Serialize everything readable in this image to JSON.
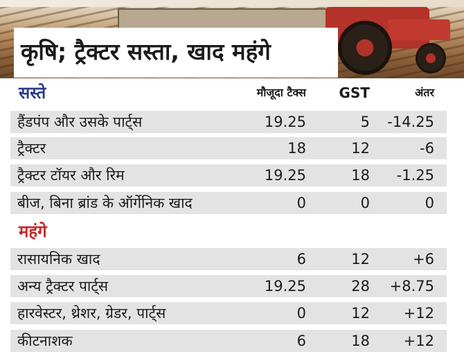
{
  "title": "कृषि; ट्रैक्टर सस्ता, खाद महंगे",
  "columns": {
    "old_tax": "मौजूदा टैक्स",
    "gst": "GST",
    "diff": "अंतर"
  },
  "sections": {
    "cheaper": {
      "label": "सस्ते",
      "color": "#2a3a8c",
      "rows": [
        {
          "item": "हैंडपंप और उसके पार्ट्स",
          "old_tax": "19.25",
          "gst": "5",
          "diff": "-14.25"
        },
        {
          "item": "ट्रैक्टर",
          "old_tax": "18",
          "gst": "12",
          "diff": "-6"
        },
        {
          "item": "ट्रैक्टर टॉयर और रिम",
          "old_tax": "19.25",
          "gst": "18",
          "diff": "-1.25"
        },
        {
          "item": "बीज, बिना ब्रांड के ऑर्गेनिक खाद",
          "old_tax": "0",
          "gst": "0",
          "diff": "0"
        }
      ]
    },
    "costlier": {
      "label": "महंगे",
      "color": "#c62828",
      "rows": [
        {
          "item": "रासायनिक खाद",
          "old_tax": "6",
          "gst": "12",
          "diff": "+6"
        },
        {
          "item": "अन्य ट्रैक्टर पार्ट्स",
          "old_tax": "19.25",
          "gst": "28",
          "diff": "+8.75"
        },
        {
          "item": "हारवेस्टर, थ्रेशर, ग्रेडर, पार्ट्स",
          "old_tax": "0",
          "gst": "12",
          "diff": "+12"
        },
        {
          "item": "कीटनाशक",
          "old_tax": "6",
          "gst": "18",
          "diff": "+12"
        }
      ]
    }
  },
  "colors": {
    "row_bg": "#e3e3e3",
    "text": "#1b1b1b"
  }
}
